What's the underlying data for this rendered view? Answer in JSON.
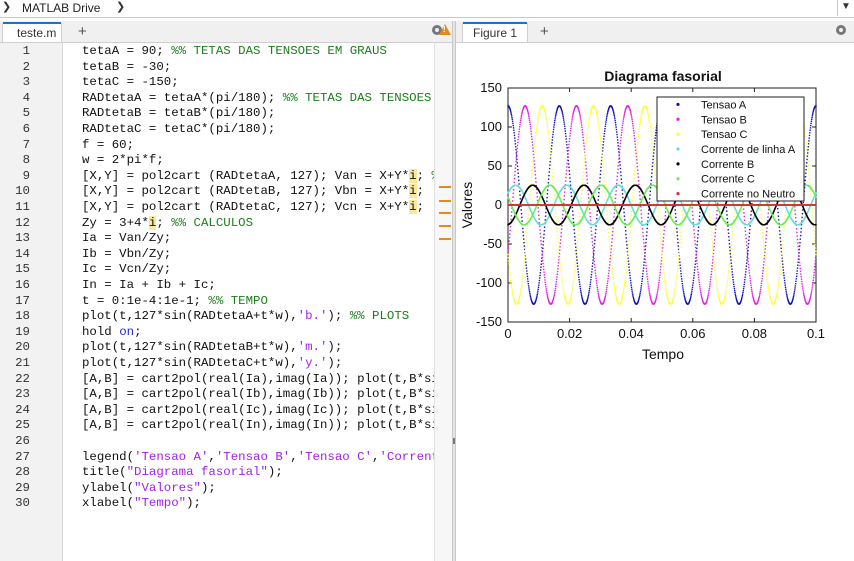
{
  "breadcrumb": {
    "label": "MATLAB Drive"
  },
  "editor": {
    "tab_label": "teste.m",
    "lines": [
      [
        [
          "tetaA = 90; ",
          ""
        ],
        [
          "%% TETAS DAS TENSOES EM GRAUS",
          "comment"
        ]
      ],
      [
        [
          "tetaB = -30;",
          ""
        ]
      ],
      [
        [
          "tetaC = -150;",
          ""
        ]
      ],
      [
        [
          "RADtetaA = tetaA*(pi/180); ",
          ""
        ],
        [
          "%% TETAS DAS TENSOES",
          "comment"
        ]
      ],
      [
        [
          "RADtetaB = tetaB*(pi/180);",
          ""
        ]
      ],
      [
        [
          "RADtetaC = tetaC*(pi/180);",
          ""
        ]
      ],
      [
        [
          "f = 60;",
          ""
        ]
      ],
      [
        [
          "w = 2*pi*f;",
          ""
        ]
      ],
      [
        [
          "[X,Y] = pol2cart (RADtetaA, 127); Van = X+Y*",
          ""
        ],
        [
          "i",
          "imag"
        ],
        [
          "; ",
          ""
        ],
        [
          "%",
          "comment"
        ]
      ],
      [
        [
          "[X,Y] = pol2cart (RADtetaB, 127); Vbn = X+Y*",
          ""
        ],
        [
          "i",
          "imag"
        ],
        [
          ";",
          ""
        ]
      ],
      [
        [
          "[X,Y] = pol2cart (RADtetaC, 127); Vcn = X+Y*",
          ""
        ],
        [
          "i",
          "imag"
        ],
        [
          ";",
          ""
        ]
      ],
      [
        [
          "Zy = 3+4*",
          ""
        ],
        [
          "i",
          "imag"
        ],
        [
          "; ",
          ""
        ],
        [
          "%% CALCULOS",
          "comment"
        ]
      ],
      [
        [
          "Ia = Van/Zy;",
          ""
        ]
      ],
      [
        [
          "Ib = Vbn/Zy;",
          ""
        ]
      ],
      [
        [
          "Ic = Vcn/Zy;",
          ""
        ]
      ],
      [
        [
          "In = Ia + Ib + Ic;",
          ""
        ]
      ],
      [
        [
          "t = 0:1e-4:1e-1; ",
          ""
        ],
        [
          "%% TEMPO",
          "comment"
        ]
      ],
      [
        [
          "plot(t,127*sin(RADtetaA+t*w),",
          ""
        ],
        [
          "'b.'",
          "string"
        ],
        [
          "); ",
          ""
        ],
        [
          "%% PLOTS",
          "comment"
        ]
      ],
      [
        [
          "hold ",
          ""
        ],
        [
          "on",
          "keyword"
        ],
        [
          ";",
          ""
        ]
      ],
      [
        [
          "plot(t,127*sin(RADtetaB+t*w),",
          ""
        ],
        [
          "'m.'",
          "string"
        ],
        [
          ");",
          ""
        ]
      ],
      [
        [
          "plot(t,127*sin(RADtetaC+t*w),",
          ""
        ],
        [
          "'y.'",
          "string"
        ],
        [
          ");",
          ""
        ]
      ],
      [
        [
          "[A,B] = cart2pol(real(Ia),imag(Ia)); plot(t,B*si",
          ""
        ]
      ],
      [
        [
          "[A,B] = cart2pol(real(Ib),imag(Ib)); plot(t,B*si",
          ""
        ]
      ],
      [
        [
          "[A,B] = cart2pol(real(Ic),imag(Ic)); plot(t,B*si",
          ""
        ]
      ],
      [
        [
          "[A,B] = cart2pol(real(In),imag(In)); plot(t,B*si",
          ""
        ]
      ],
      [
        [
          "",
          ""
        ]
      ],
      [
        [
          "legend(",
          ""
        ],
        [
          "'Tensao A'",
          "string"
        ],
        [
          ",",
          ""
        ],
        [
          "'Tensao B'",
          "string"
        ],
        [
          ",",
          ""
        ],
        [
          "'Tensao C'",
          "string"
        ],
        [
          ",",
          ""
        ],
        [
          "'Corrent",
          "string"
        ]
      ],
      [
        [
          "title(",
          ""
        ],
        [
          "\"Diagrama fasorial\"",
          "string"
        ],
        [
          ");",
          ""
        ]
      ],
      [
        [
          "ylabel(",
          ""
        ],
        [
          "\"Valores\"",
          "string"
        ],
        [
          ");",
          ""
        ]
      ],
      [
        [
          "xlabel(",
          ""
        ],
        [
          "\"Tempo\"",
          "string"
        ],
        [
          ");",
          ""
        ]
      ]
    ]
  },
  "figure": {
    "tab_label": "Figure 1"
  },
  "colors": {
    "accent": "#1a73c9",
    "warning": "#e38a1e"
  },
  "chart_data": {
    "type": "line",
    "title": "Diagrama fasorial",
    "xlabel": "Tempo",
    "ylabel": "Valores",
    "xlim": [
      0,
      0.1
    ],
    "ylim": [
      -150,
      150
    ],
    "x_ticks": [
      0,
      0.02,
      0.04,
      0.06,
      0.08,
      0.1
    ],
    "x_tick_labels": [
      "0",
      "0.02",
      "0.04",
      "0.06",
      "0.08",
      "0.1"
    ],
    "y_ticks": [
      150,
      100,
      50,
      0,
      -50,
      -100,
      -150
    ],
    "y_tick_labels": [
      "150",
      "100",
      "50",
      "0",
      "-50",
      "-100",
      "-150"
    ],
    "legend_position": "top-right",
    "x": {
      "start": 0,
      "step": 0.0001,
      "stop": 0.1
    },
    "frequency_hz": 60,
    "series": [
      {
        "name": "Tensao A",
        "amplitude": 127,
        "phase_deg": 90,
        "color": "#1010c0",
        "marker": "dot"
      },
      {
        "name": "Tensao B",
        "amplitude": 127,
        "phase_deg": -30,
        "color": "#e020e0",
        "marker": "dot"
      },
      {
        "name": "Tensao C",
        "amplitude": 127,
        "phase_deg": -150,
        "color": "#ffff33",
        "marker": "dot"
      },
      {
        "name": "Corrente de linha A",
        "amplitude": 25.4,
        "phase_deg": 36.87,
        "color": "#66dddd",
        "marker": "dot"
      },
      {
        "name": "Corrente B",
        "amplitude": 25.4,
        "phase_deg": -83.13,
        "color": "#000000",
        "marker": "dot"
      },
      {
        "name": "Corrente C",
        "amplitude": 25.4,
        "phase_deg": 156.87,
        "color": "#66ee55",
        "marker": "dot"
      },
      {
        "name": "Corrente no Neutro",
        "amplitude": 0,
        "phase_deg": 0,
        "color": "#d03030",
        "marker": "dot"
      }
    ]
  }
}
